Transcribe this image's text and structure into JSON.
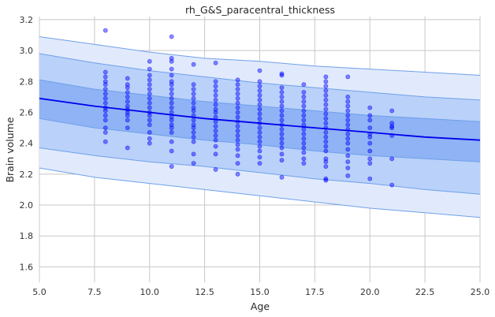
{
  "chart_data": {
    "type": "scatter",
    "title": "rh_G&S_paracentral_thickness",
    "xlabel": "Age",
    "ylabel": "Brain volume",
    "xlim": [
      5.0,
      25.0
    ],
    "ylim": [
      1.5,
      3.22
    ],
    "xticks": [
      5.0,
      7.5,
      10.0,
      12.5,
      15.0,
      17.5,
      20.0,
      22.5,
      25.0
    ],
    "xtick_labels": [
      "5.0",
      "7.5",
      "10.0",
      "12.5",
      "15.0",
      "17.5",
      "20.0",
      "22.5",
      "25.0"
    ],
    "yticks": [
      1.6,
      1.8,
      2.0,
      2.2,
      2.4,
      2.6,
      2.8,
      3.0,
      3.2
    ],
    "ytick_labels": [
      "1.6",
      "1.8",
      "2.0",
      "2.2",
      "2.4",
      "2.6",
      "2.8",
      "3.0",
      "3.2"
    ],
    "grid": true,
    "background": "#eaeaf2",
    "colors": {
      "points": "#0000ff",
      "mean_line": "#0000ee",
      "band_outer": "#e1eafc",
      "band_middle": "#bad1fa",
      "band_inner": "#8fb3f5",
      "band_edge": "#6fa0ea",
      "grid": "#c8c8c8"
    },
    "mean_curve": {
      "x": [
        5,
        7.5,
        10,
        12.5,
        15,
        17.5,
        20,
        22.5,
        25
      ],
      "y": [
        2.69,
        2.64,
        2.6,
        2.56,
        2.53,
        2.5,
        2.47,
        2.44,
        2.42
      ]
    },
    "bands": [
      {
        "level": "outer",
        "upper": [
          3.09,
          3.04,
          2.99,
          2.95,
          2.93,
          2.9,
          2.88,
          2.86,
          2.84
        ],
        "lower": [
          2.24,
          2.18,
          2.14,
          2.1,
          2.06,
          2.02,
          1.98,
          1.95,
          1.92
        ]
      },
      {
        "level": "middle",
        "upper": [
          2.98,
          2.92,
          2.87,
          2.83,
          2.79,
          2.76,
          2.73,
          2.7,
          2.68
        ],
        "lower": [
          2.37,
          2.32,
          2.28,
          2.25,
          2.21,
          2.17,
          2.14,
          2.1,
          2.07
        ]
      },
      {
        "level": "inner",
        "upper": [
          2.81,
          2.75,
          2.71,
          2.67,
          2.64,
          2.61,
          2.58,
          2.56,
          2.54
        ],
        "lower": [
          2.56,
          2.5,
          2.46,
          2.42,
          2.39,
          2.35,
          2.32,
          2.3,
          2.28
        ]
      }
    ],
    "points": [
      [
        8,
        3.13
      ],
      [
        8,
        2.86
      ],
      [
        8,
        2.83
      ],
      [
        8,
        2.8
      ],
      [
        8,
        2.78
      ],
      [
        8,
        2.75
      ],
      [
        8,
        2.72
      ],
      [
        8,
        2.69
      ],
      [
        8,
        2.66
      ],
      [
        8,
        2.63
      ],
      [
        8,
        2.61
      ],
      [
        8,
        2.58
      ],
      [
        8,
        2.55
      ],
      [
        8,
        2.5
      ],
      [
        8,
        2.47
      ],
      [
        8,
        2.41
      ],
      [
        9,
        2.82
      ],
      [
        9,
        2.78
      ],
      [
        9,
        2.76
      ],
      [
        9,
        2.73
      ],
      [
        9,
        2.7
      ],
      [
        9,
        2.67
      ],
      [
        9,
        2.64
      ],
      [
        9,
        2.62
      ],
      [
        9,
        2.6
      ],
      [
        9,
        2.58
      ],
      [
        9,
        2.55
      ],
      [
        9,
        2.5
      ],
      [
        9,
        2.37
      ],
      [
        10,
        2.93
      ],
      [
        10,
        2.88
      ],
      [
        10,
        2.84
      ],
      [
        10,
        2.81
      ],
      [
        10,
        2.78
      ],
      [
        10,
        2.75
      ],
      [
        10,
        2.72
      ],
      [
        10,
        2.69
      ],
      [
        10,
        2.66
      ],
      [
        10,
        2.63
      ],
      [
        10,
        2.6
      ],
      [
        10,
        2.58
      ],
      [
        10,
        2.55
      ],
      [
        10,
        2.52
      ],
      [
        10,
        2.47
      ],
      [
        10,
        2.43
      ],
      [
        10,
        2.4
      ],
      [
        11,
        3.09
      ],
      [
        11,
        2.95
      ],
      [
        11,
        2.93
      ],
      [
        11,
        2.88
      ],
      [
        11,
        2.84
      ],
      [
        11,
        2.8
      ],
      [
        11,
        2.78
      ],
      [
        11,
        2.75
      ],
      [
        11,
        2.72
      ],
      [
        11,
        2.69
      ],
      [
        11,
        2.66
      ],
      [
        11,
        2.63
      ],
      [
        11,
        2.6
      ],
      [
        11,
        2.57
      ],
      [
        11,
        2.55
      ],
      [
        11,
        2.52
      ],
      [
        11,
        2.5
      ],
      [
        11,
        2.47
      ],
      [
        11,
        2.41
      ],
      [
        11,
        2.35
      ],
      [
        11,
        2.25
      ],
      [
        12,
        2.91
      ],
      [
        12,
        2.78
      ],
      [
        12,
        2.75
      ],
      [
        12,
        2.72
      ],
      [
        12,
        2.69
      ],
      [
        12,
        2.66
      ],
      [
        12,
        2.63
      ],
      [
        12,
        2.61
      ],
      [
        12,
        2.58
      ],
      [
        12,
        2.55
      ],
      [
        12,
        2.52
      ],
      [
        12,
        2.5
      ],
      [
        12,
        2.47
      ],
      [
        12,
        2.44
      ],
      [
        12,
        2.41
      ],
      [
        12,
        2.33
      ],
      [
        12,
        2.27
      ],
      [
        13,
        2.92
      ],
      [
        13,
        2.8
      ],
      [
        13,
        2.77
      ],
      [
        13,
        2.74
      ],
      [
        13,
        2.71
      ],
      [
        13,
        2.68
      ],
      [
        13,
        2.65
      ],
      [
        13,
        2.62
      ],
      [
        13,
        2.6
      ],
      [
        13,
        2.57
      ],
      [
        13,
        2.54
      ],
      [
        13,
        2.51
      ],
      [
        13,
        2.48
      ],
      [
        13,
        2.45
      ],
      [
        13,
        2.42
      ],
      [
        13,
        2.38
      ],
      [
        13,
        2.33
      ],
      [
        13,
        2.23
      ],
      [
        14,
        2.81
      ],
      [
        14,
        2.78
      ],
      [
        14,
        2.75
      ],
      [
        14,
        2.72
      ],
      [
        14,
        2.69
      ],
      [
        14,
        2.66
      ],
      [
        14,
        2.63
      ],
      [
        14,
        2.6
      ],
      [
        14,
        2.57
      ],
      [
        14,
        2.54
      ],
      [
        14,
        2.51
      ],
      [
        14,
        2.48
      ],
      [
        14,
        2.45
      ],
      [
        14,
        2.42
      ],
      [
        14,
        2.39
      ],
      [
        14,
        2.36
      ],
      [
        14,
        2.32
      ],
      [
        14,
        2.27
      ],
      [
        14,
        2.2
      ],
      [
        15,
        2.87
      ],
      [
        15,
        2.8
      ],
      [
        15,
        2.77
      ],
      [
        15,
        2.74
      ],
      [
        15,
        2.71
      ],
      [
        15,
        2.68
      ],
      [
        15,
        2.65
      ],
      [
        15,
        2.62
      ],
      [
        15,
        2.59
      ],
      [
        15,
        2.56
      ],
      [
        15,
        2.53
      ],
      [
        15,
        2.5
      ],
      [
        15,
        2.47
      ],
      [
        15,
        2.44
      ],
      [
        15,
        2.41
      ],
      [
        15,
        2.38
      ],
      [
        15,
        2.35
      ],
      [
        15,
        2.31
      ],
      [
        15,
        2.27
      ],
      [
        16,
        2.85
      ],
      [
        16,
        2.84
      ],
      [
        16,
        2.76
      ],
      [
        16,
        2.73
      ],
      [
        16,
        2.7
      ],
      [
        16,
        2.67
      ],
      [
        16,
        2.64
      ],
      [
        16,
        2.61
      ],
      [
        16,
        2.58
      ],
      [
        16,
        2.55
      ],
      [
        16,
        2.52
      ],
      [
        16,
        2.49
      ],
      [
        16,
        2.46
      ],
      [
        16,
        2.43
      ],
      [
        16,
        2.4
      ],
      [
        16,
        2.37
      ],
      [
        16,
        2.33
      ],
      [
        16,
        2.29
      ],
      [
        16,
        2.18
      ],
      [
        17,
        2.78
      ],
      [
        17,
        2.73
      ],
      [
        17,
        2.7
      ],
      [
        17,
        2.67
      ],
      [
        17,
        2.64
      ],
      [
        17,
        2.61
      ],
      [
        17,
        2.58
      ],
      [
        17,
        2.55
      ],
      [
        17,
        2.52
      ],
      [
        17,
        2.49
      ],
      [
        17,
        2.46
      ],
      [
        17,
        2.43
      ],
      [
        17,
        2.4
      ],
      [
        17,
        2.37
      ],
      [
        17,
        2.34
      ],
      [
        17,
        2.3
      ],
      [
        17,
        2.27
      ],
      [
        18,
        2.83
      ],
      [
        18,
        2.8
      ],
      [
        18,
        2.77
      ],
      [
        18,
        2.74
      ],
      [
        18,
        2.71
      ],
      [
        18,
        2.68
      ],
      [
        18,
        2.65
      ],
      [
        18,
        2.62
      ],
      [
        18,
        2.59
      ],
      [
        18,
        2.56
      ],
      [
        18,
        2.53
      ],
      [
        18,
        2.5
      ],
      [
        18,
        2.47
      ],
      [
        18,
        2.44
      ],
      [
        18,
        2.41
      ],
      [
        18,
        2.38
      ],
      [
        18,
        2.35
      ],
      [
        18,
        2.3
      ],
      [
        18,
        2.28
      ],
      [
        18,
        2.25
      ],
      [
        18,
        2.17
      ],
      [
        18,
        2.16
      ],
      [
        19,
        2.83
      ],
      [
        19,
        2.7
      ],
      [
        19,
        2.67
      ],
      [
        19,
        2.64
      ],
      [
        19,
        2.61
      ],
      [
        19,
        2.58
      ],
      [
        19,
        2.55
      ],
      [
        19,
        2.52
      ],
      [
        19,
        2.49
      ],
      [
        19,
        2.46
      ],
      [
        19,
        2.43
      ],
      [
        19,
        2.4
      ],
      [
        19,
        2.36
      ],
      [
        19,
        2.32
      ],
      [
        19,
        2.28
      ],
      [
        19,
        2.24
      ],
      [
        19,
        2.19
      ],
      [
        20,
        2.63
      ],
      [
        20,
        2.58
      ],
      [
        20,
        2.55
      ],
      [
        20,
        2.5
      ],
      [
        20,
        2.46
      ],
      [
        20,
        2.44
      ],
      [
        20,
        2.4
      ],
      [
        20,
        2.35
      ],
      [
        20,
        2.3
      ],
      [
        20,
        2.27
      ],
      [
        20,
        2.17
      ],
      [
        21,
        2.61
      ],
      [
        21,
        2.53
      ],
      [
        21,
        2.51
      ],
      [
        21,
        2.5
      ],
      [
        21,
        2.45
      ],
      [
        21,
        2.3
      ],
      [
        21,
        2.13
      ]
    ]
  }
}
